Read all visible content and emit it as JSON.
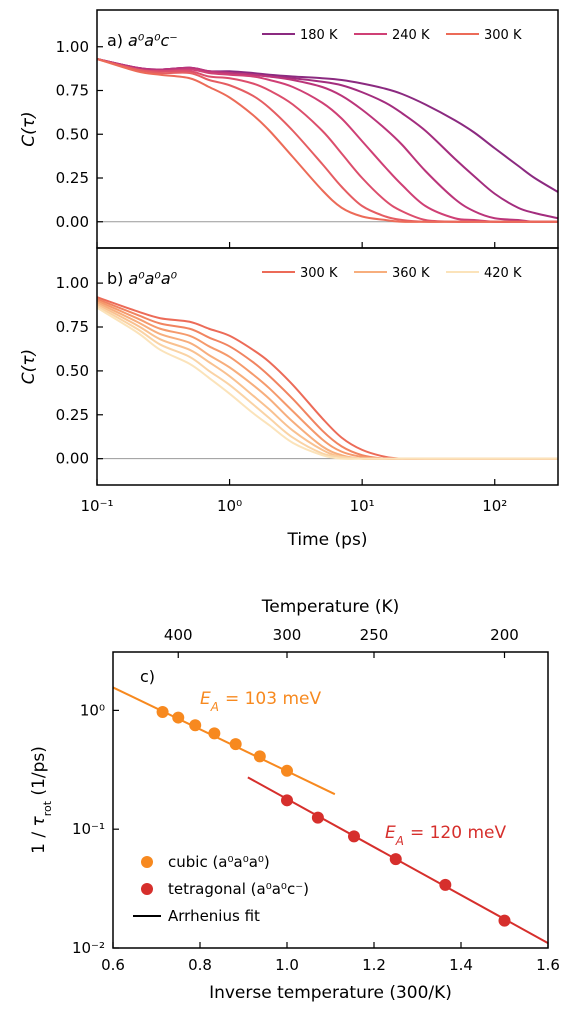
{
  "chart_data": [
    {
      "type": "line",
      "annotation": {
        "label": "a)",
        "notation": "a⁰a⁰c⁻"
      },
      "ylabel": "C(τ)",
      "xscale": "log",
      "xlim": [
        0.1,
        300
      ],
      "ylim": [
        -0.15,
        1.21
      ],
      "zero_line": true,
      "yticks": [
        {
          "value": 0,
          "label": "0.00"
        },
        {
          "value": 0.25,
          "label": "0.25"
        },
        {
          "value": 0.5,
          "label": "0.50"
        },
        {
          "value": 0.75,
          "label": "0.75"
        },
        {
          "value": 1,
          "label": "1.00"
        }
      ],
      "x": [
        0.1,
        0.2,
        0.3,
        0.5,
        0.7,
        1,
        1.5,
        2,
        3,
        5,
        7,
        10,
        15,
        20,
        30,
        50,
        70,
        100,
        150,
        200,
        300
      ],
      "series": [
        {
          "name": "180 K",
          "color": "#8b2a80",
          "values": [
            0.93,
            0.88,
            0.87,
            0.88,
            0.86,
            0.86,
            0.85,
            0.84,
            0.83,
            0.82,
            0.81,
            0.79,
            0.76,
            0.73,
            0.67,
            0.58,
            0.51,
            0.42,
            0.32,
            0.25,
            0.17
          ]
        },
        {
          "color": "#a32d7e",
          "values": [
            0.93,
            0.88,
            0.87,
            0.88,
            0.86,
            0.85,
            0.84,
            0.83,
            0.82,
            0.8,
            0.78,
            0.74,
            0.68,
            0.62,
            0.52,
            0.36,
            0.26,
            0.16,
            0.08,
            0.05,
            0.02
          ]
        },
        {
          "color": "#bb357a",
          "values": [
            0.93,
            0.88,
            0.87,
            0.88,
            0.86,
            0.85,
            0.84,
            0.83,
            0.81,
            0.77,
            0.72,
            0.64,
            0.53,
            0.44,
            0.29,
            0.13,
            0.06,
            0.02,
            0.01,
            0,
            0
          ]
        },
        {
          "name": "240 K",
          "color": "#cf4075",
          "values": [
            0.93,
            0.87,
            0.86,
            0.87,
            0.85,
            0.84,
            0.83,
            0.81,
            0.77,
            0.68,
            0.59,
            0.46,
            0.31,
            0.21,
            0.09,
            0.02,
            0.01,
            0,
            0,
            0,
            0
          ]
        },
        {
          "color": "#dc4e6c",
          "values": [
            0.93,
            0.87,
            0.86,
            0.86,
            0.83,
            0.82,
            0.79,
            0.75,
            0.67,
            0.52,
            0.39,
            0.25,
            0.12,
            0.06,
            0.01,
            0,
            0,
            0,
            0,
            0,
            0
          ]
        },
        {
          "color": "#e55d62",
          "values": [
            0.93,
            0.87,
            0.85,
            0.85,
            0.81,
            0.78,
            0.72,
            0.65,
            0.52,
            0.33,
            0.2,
            0.09,
            0.03,
            0.01,
            0,
            0,
            0,
            0,
            0,
            0,
            0
          ]
        },
        {
          "name": "300 K",
          "color": "#ec6b58",
          "values": [
            0.93,
            0.86,
            0.84,
            0.82,
            0.77,
            0.71,
            0.61,
            0.52,
            0.37,
            0.18,
            0.08,
            0.03,
            0.01,
            0,
            0,
            0,
            0,
            0,
            0,
            0,
            0
          ]
        }
      ]
    },
    {
      "type": "line",
      "annotation": {
        "label": "b)",
        "notation": "a⁰a⁰a⁰"
      },
      "ylabel": "C(τ)",
      "xlabel": "Time (ps)",
      "xscale": "log",
      "xlim": [
        0.1,
        300
      ],
      "ylim": [
        -0.15,
        1.2
      ],
      "zero_line": true,
      "xticks": [
        {
          "value": 0.1,
          "label": "10⁻¹"
        },
        {
          "value": 1,
          "label": "10⁰"
        },
        {
          "value": 10,
          "label": "10¹"
        },
        {
          "value": 100,
          "label": "10²"
        }
      ],
      "yticks": [
        {
          "value": 0,
          "label": "0.00"
        },
        {
          "value": 0.25,
          "label": "0.25"
        },
        {
          "value": 0.5,
          "label": "0.50"
        },
        {
          "value": 0.75,
          "label": "0.75"
        },
        {
          "value": 1,
          "label": "1.00"
        }
      ],
      "x": [
        0.1,
        0.2,
        0.3,
        0.5,
        0.7,
        1,
        1.5,
        2,
        3,
        5,
        7,
        10,
        15,
        20,
        30,
        50,
        70,
        100,
        150,
        200,
        300
      ],
      "series": [
        {
          "name": "300 K",
          "color": "#ec6b58",
          "values": [
            0.92,
            0.84,
            0.8,
            0.78,
            0.74,
            0.7,
            0.62,
            0.55,
            0.42,
            0.23,
            0.12,
            0.05,
            0.01,
            0,
            0,
            0,
            0,
            0,
            0,
            0,
            0
          ]
        },
        {
          "color": "#f18460",
          "values": [
            0.91,
            0.82,
            0.77,
            0.74,
            0.69,
            0.64,
            0.55,
            0.47,
            0.34,
            0.16,
            0.07,
            0.02,
            0,
            0,
            0,
            0,
            0,
            0,
            0,
            0,
            0
          ]
        },
        {
          "color": "#f59a6c",
          "values": [
            0.9,
            0.8,
            0.74,
            0.7,
            0.64,
            0.58,
            0.48,
            0.4,
            0.27,
            0.11,
            0.04,
            0.01,
            0,
            0,
            0,
            0,
            0,
            0,
            0,
            0,
            0
          ]
        },
        {
          "name": "360 K",
          "color": "#f7ae7d",
          "values": [
            0.89,
            0.78,
            0.71,
            0.66,
            0.59,
            0.52,
            0.42,
            0.34,
            0.21,
            0.07,
            0.02,
            0,
            0,
            0,
            0,
            0,
            0,
            0,
            0,
            0,
            0
          ]
        },
        {
          "color": "#f9c190",
          "values": [
            0.88,
            0.76,
            0.68,
            0.62,
            0.55,
            0.47,
            0.36,
            0.28,
            0.16,
            0.05,
            0.01,
            0,
            0,
            0,
            0,
            0,
            0,
            0,
            0,
            0,
            0
          ]
        },
        {
          "color": "#fad3a5",
          "values": [
            0.87,
            0.74,
            0.65,
            0.58,
            0.5,
            0.42,
            0.31,
            0.23,
            0.12,
            0.03,
            0.01,
            0,
            0,
            0,
            0,
            0,
            0,
            0,
            0,
            0,
            0
          ]
        },
        {
          "name": "420 K",
          "color": "#fbe3ba",
          "values": [
            0.86,
            0.72,
            0.62,
            0.54,
            0.46,
            0.37,
            0.26,
            0.19,
            0.09,
            0.02,
            0,
            0,
            0,
            0,
            0,
            0,
            0,
            0,
            0,
            0,
            0
          ]
        }
      ]
    },
    {
      "type": "scatter",
      "annotation": {
        "label": "c)"
      },
      "energies": [
        {
          "symbol": "E",
          "subscript": "A",
          "text": "= 103 meV",
          "color": "#f7891f"
        },
        {
          "symbol": "E",
          "subscript": "A",
          "text": "= 120 meV",
          "color": "#d62f2c"
        }
      ],
      "ylabel": {
        "pre": "1 / ",
        "symbol": "τ",
        "subscript": "rot",
        "post": " (1/ps)"
      },
      "xlabel": "Inverse temperature (300/K)",
      "top_axis": {
        "label": "Temperature (K)",
        "numerator": 300,
        "ticks": [
          400,
          300,
          250,
          200
        ]
      },
      "xlim": [
        0.6,
        1.6
      ],
      "ylim": [
        0.01,
        3.1
      ],
      "yscale": "log",
      "xticks": [
        0.6,
        0.8,
        {
          "value": 1,
          "label": "1.0"
        },
        1.2,
        1.4,
        1.6
      ],
      "yticks": [
        {
          "value": 0.01,
          "label": "10⁻²"
        },
        {
          "value": 0.1,
          "label": "10⁻¹"
        },
        {
          "value": 1,
          "label": "10⁰"
        }
      ],
      "series": [
        {
          "name": "cubic (a⁰a⁰a⁰)",
          "kind": "scatter",
          "color": "#f7891f",
          "x": [
            0.714,
            0.75,
            0.789,
            0.833,
            0.882,
            0.9375,
            1.0
          ],
          "values": [
            0.97,
            0.87,
            0.75,
            0.64,
            0.52,
            0.41,
            0.31
          ]
        },
        {
          "name": "tetragonal (a⁰a⁰c⁻)",
          "kind": "scatter",
          "color": "#d62f2c",
          "x": [
            1.0,
            1.071,
            1.154,
            1.25,
            1.364,
            1.5
          ],
          "values": [
            0.175,
            0.125,
            0.087,
            0.056,
            0.034,
            0.017
          ]
        },
        {
          "kind": "line",
          "color": "#f7891f",
          "x": [
            0.6,
            1.11
          ],
          "values": [
            1.56,
            0.197
          ]
        },
        {
          "kind": "line",
          "color": "#d62f2c",
          "x": [
            0.91,
            1.6
          ],
          "values": [
            0.273,
            0.011
          ]
        }
      ],
      "legend_extra": {
        "name": "Arrhenius fit",
        "color": "#000000"
      }
    }
  ]
}
